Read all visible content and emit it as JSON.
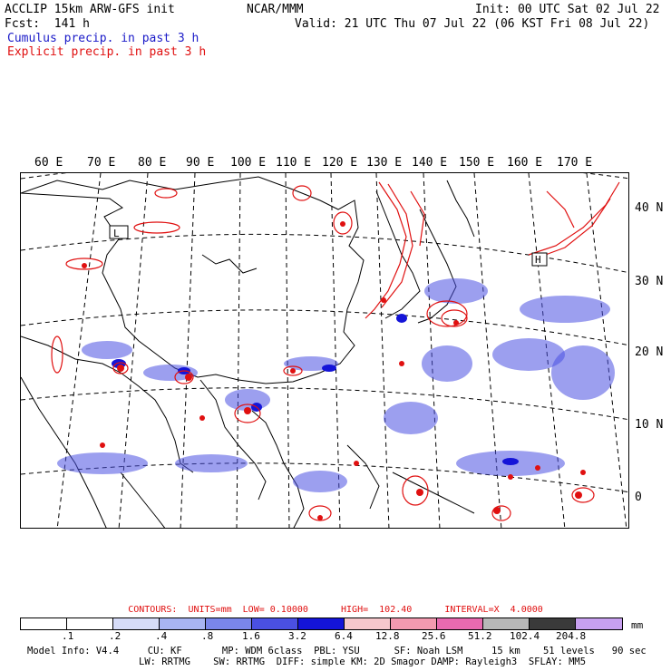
{
  "header": {
    "title": "ACCLIP 15km ARW-GFS init",
    "org": "NCAR/MMM",
    "init": "Init: 00 UTC Sat 02 Jul 22",
    "fcst": "Fcst:  141 h",
    "valid": "Valid: 21 UTC Thu 07 Jul 22 (06 KST Fri 08 Jul 22)",
    "cumulus_label": "Cumulus precip. in past 3 h",
    "explicit_label": "Explicit precip. in past 3 h"
  },
  "map": {
    "lon_labels": [
      "60 E",
      "70 E",
      "80 E",
      "90 E",
      "100 E",
      "110 E",
      "120 E",
      "130 E",
      "140 E",
      "150 E",
      "160 E",
      "170 E"
    ],
    "lat_labels": [
      "40 N",
      "30 N",
      "20 N",
      "10 N",
      "0"
    ],
    "low_markers": [
      "L"
    ],
    "high_markers": [
      "H"
    ]
  },
  "contour_info": "CONTOURS:  UNITS=mm  LOW= 0.10000      HIGH=  102.40      INTERVAL=X  4.0000",
  "colorbar": {
    "colors": [
      "#ffffff",
      "#ffffff",
      "#ffffff",
      "#ffffff",
      "#d6dcf8",
      "#a8b4f2",
      "#7a86ea",
      "#4a50e2",
      "#1414d8",
      "#f6c8cc",
      "#f39ab0",
      "#e86ab0",
      "#b8b8b8",
      "#3a3a3a",
      "#c8a0f0"
    ],
    "labels": [
      ".1",
      ".2",
      ".4",
      ".8",
      "1.6",
      "3.2",
      "6.4",
      "12.8",
      "25.6",
      "51.2",
      "102.4",
      "204.8"
    ],
    "units": "mm"
  },
  "footer": {
    "line1": "Model Info: V4.4     CU: KF       MP: WDM 6class  PBL: YSU      SF: Noah LSM     15 km    51 levels   90 sec",
    "line2": "LW: RRTMG    SW: RRTMG  DIFF: simple KM: 2D Smagor DAMP: Rayleigh3  SFLAY: MM5"
  },
  "colors": {
    "cumulus": "#1a1ac8",
    "explicit": "#e01010"
  }
}
